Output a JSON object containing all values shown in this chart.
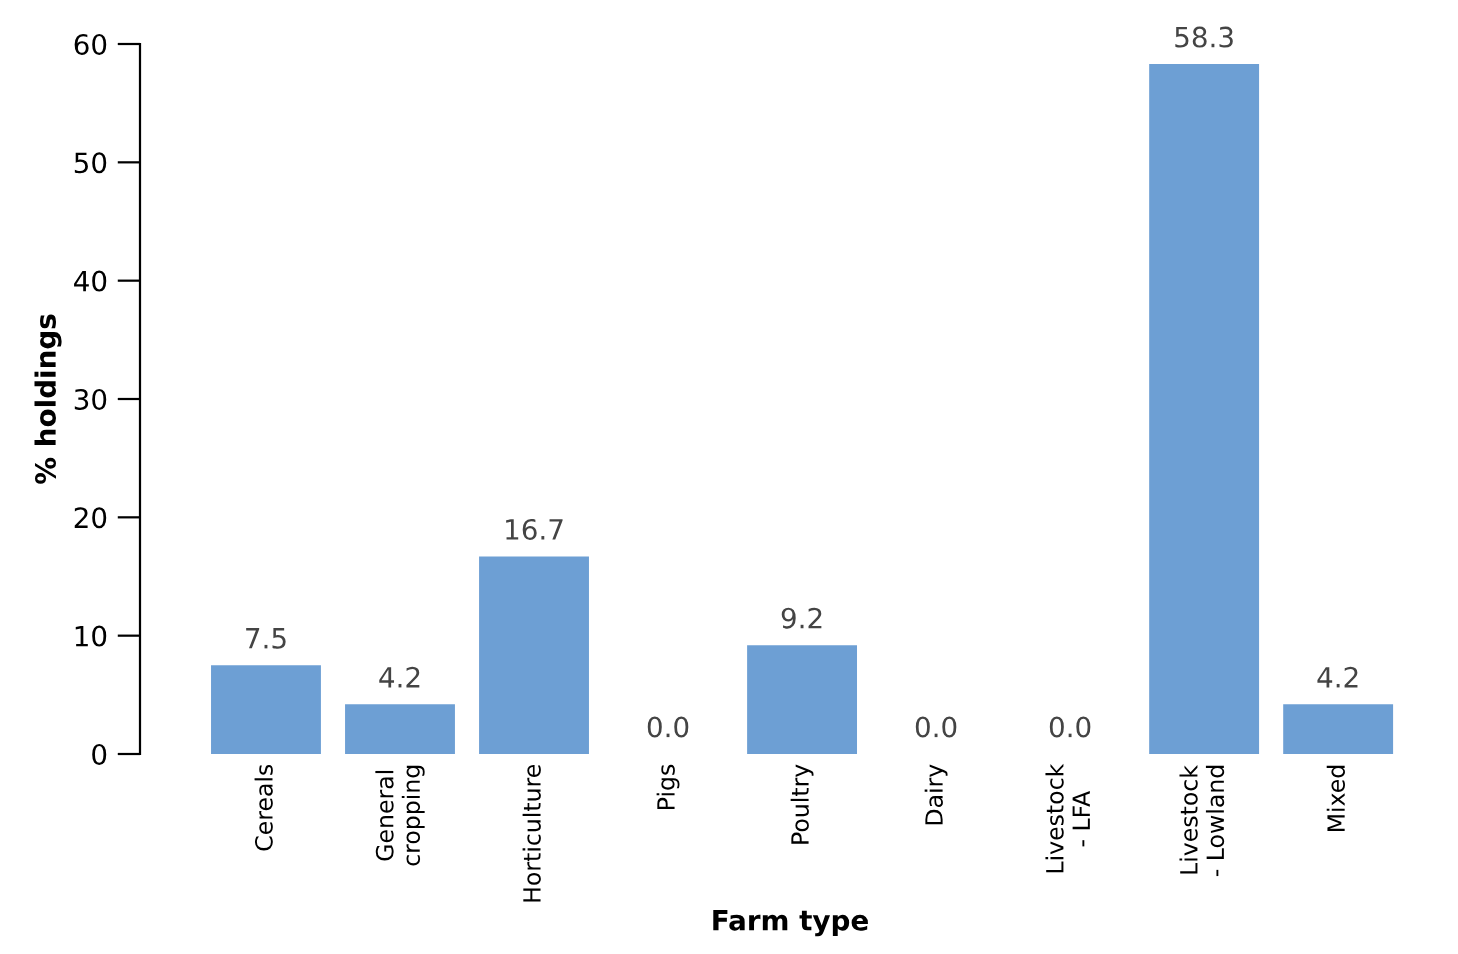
{
  "chart_data": {
    "type": "bar",
    "xlabel": "Farm type",
    "ylabel": "% holdings",
    "categories": [
      "Cereals",
      "General\ncropping",
      "Horticulture",
      "Pigs",
      "Poultry",
      "Dairy",
      "Livestock\n- LFA",
      "Livestock\n- Lowland",
      "Mixed"
    ],
    "values": [
      7.5,
      4.2,
      16.7,
      0.0,
      9.2,
      0.0,
      0.0,
      58.3,
      4.2
    ],
    "value_labels": [
      "7.5",
      "4.2",
      "16.7",
      "0.0",
      "9.2",
      "0.0",
      "0.0",
      "58.3",
      "4.2"
    ],
    "color": "#6d9fd4",
    "ylim": [
      0,
      60
    ],
    "yticks": [
      0,
      10,
      20,
      30,
      40,
      50,
      60
    ],
    "grid": false,
    "legend": false
  }
}
